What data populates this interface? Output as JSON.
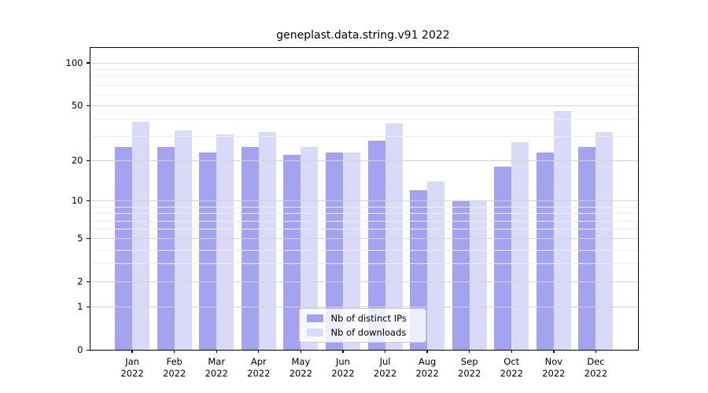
{
  "chart_data": {
    "type": "bar",
    "title": "geneplast.data.string.v91 2022",
    "year_label": "2022",
    "months": [
      "Jan",
      "Feb",
      "Mar",
      "Apr",
      "May",
      "Jun",
      "Jul",
      "Aug",
      "Sep",
      "Oct",
      "Nov",
      "Dec"
    ],
    "categories": [
      "Jan 2022",
      "Feb 2022",
      "Mar 2022",
      "Apr 2022",
      "May 2022",
      "Jun 2022",
      "Jul 2022",
      "Aug 2022",
      "Sep 2022",
      "Oct 2022",
      "Nov 2022",
      "Dec 2022"
    ],
    "series": [
      {
        "name": "Nb of distinct IPs",
        "color": "#a3a3f0",
        "values": [
          25,
          25,
          23,
          25,
          22,
          23,
          28,
          12,
          10,
          18,
          23,
          25
        ]
      },
      {
        "name": "Nb of downloads",
        "color": "#d9d9f8",
        "values": [
          38,
          33,
          31,
          32,
          25,
          23,
          37,
          14,
          10,
          27,
          46,
          32
        ]
      }
    ],
    "yscale": "log1p",
    "ylim": [
      0,
      127.4
    ],
    "yticks": [
      0,
      1,
      2,
      5,
      10,
      20,
      50,
      100
    ],
    "minor_yticks": [
      3,
      4,
      6,
      7,
      8,
      9,
      30,
      40,
      60,
      70,
      80,
      90
    ],
    "grid": true,
    "legend_position": "lower center"
  }
}
